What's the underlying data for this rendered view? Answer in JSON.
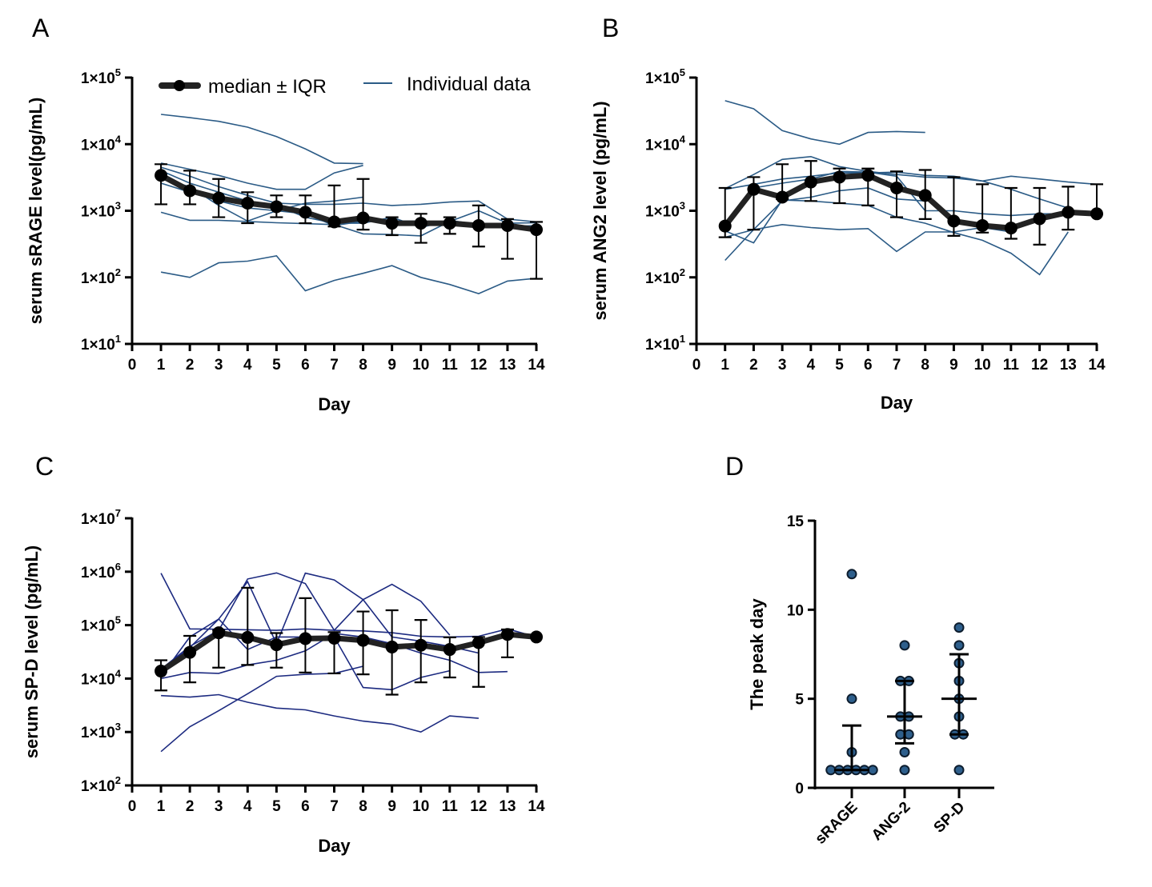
{
  "chart_data": [
    {
      "panel": "A",
      "type": "line",
      "yscale": "log",
      "ylim": [
        10,
        100000
      ],
      "yticks": [
        {
          "base": "1×10",
          "exp": "1"
        },
        {
          "base": "1×10",
          "exp": "2"
        },
        {
          "base": "1×10",
          "exp": "3"
        },
        {
          "base": "1×10",
          "exp": "4"
        },
        {
          "base": "1×10",
          "exp": "5"
        }
      ],
      "xlim": [
        0,
        14
      ],
      "xticks": [
        "0",
        "1",
        "2",
        "3",
        "4",
        "5",
        "6",
        "7",
        "8",
        "9",
        "10",
        "11",
        "12",
        "13",
        "14"
      ],
      "xlabel": "Day",
      "ylabel": "serum sRAGE level(pg/mL)",
      "legend": {
        "placement": "top",
        "median_label": "median ± IQR",
        "individual_label": "Individual data"
      },
      "individual_color": "#2b5b86",
      "median": {
        "x": [
          1,
          2,
          3,
          4,
          5,
          6,
          7,
          8,
          9,
          10,
          11,
          12,
          13,
          14
        ],
        "values": [
          3400,
          2000,
          1550,
          1300,
          1150,
          950,
          680,
          780,
          650,
          650,
          650,
          600,
          600,
          520
        ],
        "iqr_low": [
          1250,
          1250,
          800,
          650,
          800,
          650,
          580,
          520,
          430,
          330,
          450,
          290,
          190,
          95
        ],
        "iqr_high": [
          5000,
          4000,
          3000,
          1900,
          1700,
          1700,
          2400,
          3000,
          800,
          900,
          800,
          1200,
          750,
          680
        ]
      },
      "individual": [
        [
          28000,
          25000,
          22000,
          18000,
          13000,
          8500,
          5200,
          5100,
          null,
          null,
          null,
          null,
          null,
          null
        ],
        [
          120,
          100,
          165,
          175,
          210,
          63,
          90,
          115,
          150,
          100,
          78,
          57,
          88,
          97
        ],
        [
          950,
          720,
          720,
          690,
          660,
          640,
          620,
          450,
          440,
          420,
          690,
          1000,
          650,
          660
        ],
        [
          5200,
          4200,
          3400,
          2600,
          2100,
          2100,
          3700,
          4800,
          null,
          null,
          null,
          null,
          null,
          null
        ],
        [
          4500,
          3300,
          2300,
          1700,
          1300,
          1250,
          1250,
          1300,
          1200,
          1250,
          1350,
          1400,
          750,
          680
        ],
        [
          3000,
          2300,
          1200,
          700,
          1000,
          1300,
          1400,
          1600,
          null,
          null,
          null,
          null,
          null,
          null
        ],
        [
          2600,
          1900,
          1400,
          1100,
          1000,
          900,
          600,
          700,
          700,
          700,
          660,
          560,
          580,
          600
        ],
        [
          4000,
          2600,
          1900,
          1400,
          1200,
          800,
          650,
          650,
          800,
          560,
          720,
          620,
          650,
          null
        ]
      ]
    },
    {
      "panel": "B",
      "type": "line",
      "yscale": "log",
      "ylim": [
        10,
        100000
      ],
      "yticks": [
        {
          "base": "1×10",
          "exp": "1"
        },
        {
          "base": "1×10",
          "exp": "2"
        },
        {
          "base": "1×10",
          "exp": "3"
        },
        {
          "base": "1×10",
          "exp": "4"
        },
        {
          "base": "1×10",
          "exp": "5"
        }
      ],
      "xlim": [
        0,
        14
      ],
      "xticks": [
        "0",
        "1",
        "2",
        "3",
        "4",
        "5",
        "6",
        "7",
        "8",
        "9",
        "10",
        "11",
        "12",
        "13",
        "14"
      ],
      "xlabel": "Day",
      "ylabel": "serum ANG2 level (pg/mL)",
      "individual_color": "#2b5b86",
      "median": {
        "x": [
          1,
          2,
          3,
          4,
          5,
          6,
          7,
          8,
          9,
          10,
          11,
          12,
          13,
          14
        ],
        "values": [
          590,
          2100,
          1600,
          2700,
          3200,
          3400,
          2200,
          1700,
          700,
          600,
          550,
          760,
          950,
          900
        ],
        "iqr_low": [
          400,
          520,
          1500,
          1400,
          1300,
          1200,
          800,
          750,
          420,
          470,
          380,
          310,
          520,
          900
        ],
        "iqr_high": [
          2200,
          3200,
          5000,
          5600,
          4300,
          4300,
          3900,
          4100,
          3200,
          2500,
          2200,
          2200,
          2300,
          2500
        ]
      },
      "individual": [
        [
          45000,
          34000,
          16000,
          12000,
          10000,
          15000,
          15500,
          15000,
          null,
          null,
          null,
          null,
          null,
          null
        ],
        [
          2150,
          3500,
          5900,
          6500,
          4600,
          3900,
          3500,
          3200,
          3100,
          2800,
          3300,
          3000,
          2700,
          2500
        ],
        [
          400,
          520,
          620,
          560,
          520,
          540,
          245,
          480,
          480,
          560,
          480,
          null,
          null,
          null
        ],
        [
          180,
          520,
          1400,
          1600,
          2000,
          2200,
          1500,
          1400,
          null,
          null,
          null,
          null,
          null,
          null
        ],
        [
          500,
          330,
          1450,
          1400,
          1300,
          1200,
          800,
          650,
          470,
          360,
          230,
          110,
          480,
          null
        ],
        [
          600,
          2200,
          2600,
          3000,
          3900,
          3800,
          3300,
          1000,
          1000,
          900,
          850,
          900,
          900,
          900
        ],
        [
          2100,
          2500,
          3000,
          3300,
          3700,
          3700,
          3800,
          3400,
          3300,
          2800,
          2100,
          1500,
          1100,
          null
        ]
      ]
    },
    {
      "panel": "C",
      "type": "line",
      "yscale": "log",
      "ylim": [
        100,
        10000000
      ],
      "yticks": [
        {
          "base": "1×10",
          "exp": "2"
        },
        {
          "base": "1×10",
          "exp": "3"
        },
        {
          "base": "1×10",
          "exp": "4"
        },
        {
          "base": "1×10",
          "exp": "5"
        },
        {
          "base": "1×10",
          "exp": "6"
        },
        {
          "base": "1×10",
          "exp": "7"
        }
      ],
      "xlim": [
        0,
        14
      ],
      "xticks": [
        "0",
        "1",
        "2",
        "3",
        "4",
        "5",
        "6",
        "7",
        "8",
        "9",
        "10",
        "11",
        "12",
        "13",
        "14"
      ],
      "xlabel": "Day",
      "ylabel": "serum SP-D level (pg/mL)",
      "individual_color": "#1c2a80",
      "median": {
        "x": [
          1,
          2,
          3,
          4,
          5,
          6,
          7,
          8,
          9,
          10,
          11,
          12,
          13,
          14
        ],
        "values": [
          13800,
          31000,
          72000,
          59000,
          43000,
          56000,
          57000,
          52000,
          39000,
          42000,
          35000,
          47000,
          67000,
          60000
        ],
        "iqr_low": [
          6000,
          8500,
          16000,
          18000,
          16000,
          13000,
          12500,
          12000,
          5000,
          8500,
          10500,
          7000,
          25000,
          null
        ],
        "iqr_high": [
          22000,
          63000,
          80000,
          500000,
          71000,
          320000,
          74000,
          180000,
          190000,
          125000,
          59000,
          60000,
          83000,
          null
        ]
      },
      "individual": [
        [
          940000,
          85000,
          84000,
          82000,
          80000,
          85000,
          80000,
          78000,
          72000,
          62000,
          60000,
          62000,
          85000,
          60000
        ],
        [
          15000,
          40000,
          80000,
          730000,
          950000,
          600000,
          80000,
          300000,
          580000,
          280000,
          65000,
          null,
          null,
          null
        ],
        [
          14000,
          38000,
          130000,
          650000,
          45000,
          940000,
          700000,
          300000,
          60000,
          50000,
          40000,
          30000,
          null,
          null
        ],
        [
          430,
          1250,
          2500,
          5200,
          11000,
          12000,
          12500,
          17000,
          null,
          null,
          null,
          null,
          null,
          null
        ],
        [
          4800,
          4500,
          5000,
          3600,
          2800,
          2600,
          2000,
          1600,
          1400,
          1000,
          2000,
          1800,
          null,
          null
        ],
        [
          10000,
          13000,
          12500,
          18000,
          22000,
          33000,
          70000,
          60000,
          45000,
          30000,
          22000,
          13000,
          13500,
          null
        ],
        [
          11000,
          60000,
          130000,
          35000,
          60000,
          60000,
          60000,
          6800,
          6200,
          10500,
          14000,
          null,
          null,
          null
        ]
      ]
    },
    {
      "panel": "D",
      "type": "scatter",
      "ylim": [
        0,
        15
      ],
      "yticks": [
        "0",
        "5",
        "10",
        "15"
      ],
      "categories": [
        "sRAGE",
        "ANG-2",
        "SP-D"
      ],
      "ylabel": "The peak day",
      "point_color": "#2e5f8c",
      "groups": [
        {
          "category": "sRAGE",
          "values": [
            12,
            5,
            2,
            1,
            1,
            1,
            1,
            1,
            1
          ],
          "median": 1,
          "iqr": [
            1,
            3.5
          ]
        },
        {
          "category": "ANG-2",
          "values": [
            8,
            6,
            6,
            4,
            4,
            3,
            3,
            2,
            1
          ],
          "median": 4,
          "iqr": [
            2.5,
            6
          ]
        },
        {
          "category": "SP-D",
          "values": [
            9,
            8,
            7,
            6,
            5,
            4,
            3,
            3,
            1
          ],
          "median": 5,
          "iqr": [
            3,
            7.5
          ]
        }
      ]
    }
  ],
  "panel_labels": [
    "A",
    "B",
    "C",
    "D"
  ]
}
